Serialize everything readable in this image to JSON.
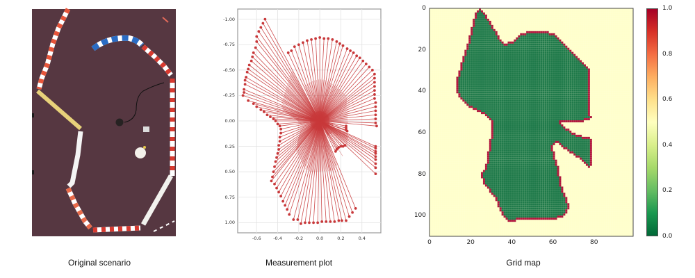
{
  "figure": {
    "panels": [
      {
        "id": "photo",
        "caption": "Original scenario"
      },
      {
        "id": "measurement",
        "caption": "Measurement plot"
      },
      {
        "id": "grid",
        "caption": "Grid map"
      }
    ]
  },
  "colors": {
    "floor": "#5a3a44",
    "ray": "#c8383a",
    "free": "#1f7a4a",
    "occupied": "#b0163c",
    "unknown": "#ffffcc"
  },
  "chart_data": [
    {
      "type": "scatter",
      "title": "Measurement plot",
      "description": "LIDAR rays drawn from the origin (0,0) to each measured endpoint",
      "xlabel": "",
      "ylabel": "",
      "xlim": [
        -0.78,
        0.58
      ],
      "ylim": [
        1.1,
        -1.1
      ],
      "y_inverted": true,
      "grid": true,
      "xticks": [
        -0.6,
        -0.4,
        -0.2,
        0.0,
        0.2,
        0.4
      ],
      "xtick_labels": [
        "-0.6",
        "-0.4",
        "-0.2",
        "0.0",
        "0.2",
        "0.4"
      ],
      "yticks": [
        -1.0,
        -0.75,
        -0.5,
        -0.25,
        0.0,
        0.25,
        0.5,
        0.75,
        1.0
      ],
      "ytick_labels": [
        "-1.00",
        "-0.75",
        "-0.50",
        "-0.25",
        "0.00",
        "0.25",
        "0.50",
        "0.75",
        "1.00"
      ],
      "origin": [
        0,
        0
      ],
      "endpoints": [
        [
          -0.52,
          -1.0
        ],
        [
          -0.54,
          -0.96
        ],
        [
          -0.56,
          -0.92
        ],
        [
          -0.58,
          -0.88
        ],
        [
          -0.6,
          -0.83
        ],
        [
          -0.6,
          -0.78
        ],
        [
          -0.61,
          -0.72
        ],
        [
          -0.63,
          -0.67
        ],
        [
          -0.64,
          -0.63
        ],
        [
          -0.65,
          -0.59
        ],
        [
          -0.67,
          -0.55
        ],
        [
          -0.68,
          -0.51
        ],
        [
          -0.69,
          -0.48
        ],
        [
          -0.7,
          -0.43
        ],
        [
          -0.71,
          -0.4
        ],
        [
          -0.71,
          -0.36
        ],
        [
          -0.72,
          -0.31
        ],
        [
          -0.72,
          -0.28
        ],
        [
          -0.73,
          -0.25
        ],
        [
          -0.68,
          -0.2
        ],
        [
          -0.63,
          -0.17
        ],
        [
          -0.6,
          -0.14
        ],
        [
          -0.56,
          -0.11
        ],
        [
          -0.53,
          -0.09
        ],
        [
          -0.5,
          -0.06
        ],
        [
          -0.47,
          -0.04
        ],
        [
          -0.44,
          -0.02
        ],
        [
          -0.42,
          0.0
        ],
        [
          -0.4,
          0.03
        ],
        [
          -0.38,
          0.05
        ],
        [
          -0.37,
          0.08
        ],
        [
          -0.37,
          0.12
        ],
        [
          -0.38,
          0.16
        ],
        [
          -0.38,
          0.2
        ],
        [
          -0.39,
          0.24
        ],
        [
          -0.39,
          0.28
        ],
        [
          -0.4,
          0.32
        ],
        [
          -0.41,
          0.36
        ],
        [
          -0.42,
          0.4
        ],
        [
          -0.43,
          0.45
        ],
        [
          -0.44,
          0.5
        ],
        [
          -0.45,
          0.55
        ],
        [
          -0.46,
          0.59
        ],
        [
          -0.43,
          0.62
        ],
        [
          -0.41,
          0.66
        ],
        [
          -0.39,
          0.7
        ],
        [
          -0.37,
          0.74
        ],
        [
          -0.35,
          0.79
        ],
        [
          -0.33,
          0.83
        ],
        [
          -0.31,
          0.87
        ],
        [
          -0.29,
          0.92
        ],
        [
          -0.25,
          0.97
        ],
        [
          -0.21,
          0.97
        ],
        [
          -0.18,
          1.01
        ],
        [
          -0.14,
          1.0
        ],
        [
          -0.1,
          1.0
        ],
        [
          -0.06,
          1.0
        ],
        [
          -0.02,
          1.0
        ],
        [
          0.02,
          0.99
        ],
        [
          0.06,
          0.99
        ],
        [
          0.1,
          0.99
        ],
        [
          0.14,
          0.99
        ],
        [
          0.18,
          0.98
        ],
        [
          0.21,
          0.98
        ],
        [
          0.25,
          0.98
        ],
        [
          0.28,
          0.94
        ],
        [
          0.31,
          0.9
        ],
        [
          0.34,
          0.86
        ],
        [
          0.53,
          0.52
        ],
        [
          0.53,
          0.46
        ],
        [
          0.53,
          0.42
        ],
        [
          0.53,
          0.38
        ],
        [
          0.53,
          0.35
        ],
        [
          0.53,
          0.32
        ],
        [
          0.53,
          0.3
        ],
        [
          0.53,
          0.27
        ],
        [
          0.53,
          0.25
        ],
        [
          0.15,
          0.3
        ],
        [
          0.16,
          0.28
        ],
        [
          0.17,
          0.27
        ],
        [
          0.18,
          0.26
        ],
        [
          0.2,
          0.25
        ],
        [
          0.22,
          0.25
        ],
        [
          0.24,
          0.24
        ],
        [
          0.25,
          0.05
        ],
        [
          0.25,
          0.07
        ],
        [
          0.25,
          0.09
        ],
        [
          0.26,
          0.1
        ],
        [
          0.54,
          0.05
        ],
        [
          0.53,
          0.02
        ],
        [
          0.53,
          -0.02
        ],
        [
          0.53,
          -0.06
        ],
        [
          0.53,
          -0.1
        ],
        [
          0.53,
          -0.14
        ],
        [
          0.53,
          -0.18
        ],
        [
          0.52,
          -0.22
        ],
        [
          0.52,
          -0.26
        ],
        [
          0.52,
          -0.3
        ],
        [
          0.52,
          -0.34
        ],
        [
          0.52,
          -0.38
        ],
        [
          0.52,
          -0.42
        ],
        [
          0.52,
          -0.46
        ],
        [
          0.5,
          -0.5
        ],
        [
          0.47,
          -0.53
        ],
        [
          0.44,
          -0.56
        ],
        [
          0.41,
          -0.59
        ],
        [
          0.38,
          -0.62
        ],
        [
          0.35,
          -0.64
        ],
        [
          0.32,
          -0.67
        ],
        [
          0.29,
          -0.69
        ],
        [
          0.26,
          -0.71
        ],
        [
          0.22,
          -0.74
        ],
        [
          0.19,
          -0.76
        ],
        [
          0.16,
          -0.78
        ],
        [
          0.12,
          -0.8
        ],
        [
          0.08,
          -0.81
        ],
        [
          0.04,
          -0.81
        ],
        [
          0.0,
          -0.82
        ],
        [
          -0.04,
          -0.81
        ],
        [
          -0.08,
          -0.8
        ],
        [
          -0.12,
          -0.79
        ],
        [
          -0.16,
          -0.77
        ],
        [
          -0.2,
          -0.75
        ],
        [
          -0.24,
          -0.73
        ],
        [
          -0.27,
          -0.69
        ],
        [
          -0.3,
          -0.67
        ]
      ]
    },
    {
      "type": "heatmap",
      "title": "Grid map",
      "xlabel": "",
      "ylabel": "",
      "xlim": [
        0,
        99
      ],
      "ylim": [
        110,
        0
      ],
      "xticks": [
        0,
        20,
        40,
        60,
        80
      ],
      "yticks": [
        0,
        20,
        40,
        60,
        80,
        100
      ],
      "colormap": "RdYlGn_r",
      "colorbar": {
        "min": 0.0,
        "max": 1.0,
        "ticks": [
          "0.0",
          "0.2",
          "0.4",
          "0.6",
          "0.8",
          "1.0"
        ]
      },
      "cell_values": {
        "free": 0.0,
        "unknown": 0.5,
        "occupied": 1.0
      },
      "free_region_outline": [
        [
          24,
          0
        ],
        [
          26,
          2
        ],
        [
          29,
          7
        ],
        [
          33,
          14
        ],
        [
          36,
          18
        ],
        [
          40,
          17
        ],
        [
          45,
          13
        ],
        [
          50,
          12
        ],
        [
          57,
          12
        ],
        [
          60,
          13
        ],
        [
          65,
          17
        ],
        [
          70,
          22
        ],
        [
          73,
          25
        ],
        [
          76,
          28
        ],
        [
          77,
          30
        ],
        [
          77,
          50
        ],
        [
          78,
          53
        ],
        [
          72,
          54
        ],
        [
          66,
          54
        ],
        [
          63,
          54
        ],
        [
          64,
          57
        ],
        [
          70,
          61
        ],
        [
          76,
          63
        ],
        [
          78,
          63
        ],
        [
          78,
          76
        ],
        [
          76,
          74
        ],
        [
          72,
          71
        ],
        [
          66,
          67
        ],
        [
          63,
          64
        ],
        [
          60,
          65
        ],
        [
          59,
          67
        ],
        [
          60,
          71
        ],
        [
          62,
          78
        ],
        [
          64,
          88
        ],
        [
          66,
          92
        ],
        [
          67,
          96
        ],
        [
          65,
          100
        ],
        [
          60,
          101
        ],
        [
          45,
          101
        ],
        [
          40,
          102
        ],
        [
          37,
          101
        ],
        [
          35,
          97
        ],
        [
          33,
          92
        ],
        [
          30,
          88
        ],
        [
          27,
          84
        ],
        [
          26,
          80
        ],
        [
          28,
          78
        ],
        [
          29,
          73
        ],
        [
          30,
          66
        ],
        [
          31,
          60
        ],
        [
          31,
          54
        ],
        [
          28,
          51
        ],
        [
          24,
          49
        ],
        [
          20,
          47
        ],
        [
          16,
          44
        ],
        [
          14,
          40
        ],
        [
          14,
          35
        ],
        [
          16,
          28
        ],
        [
          18,
          22
        ],
        [
          20,
          15
        ],
        [
          22,
          7
        ],
        [
          24,
          0
        ]
      ]
    }
  ]
}
